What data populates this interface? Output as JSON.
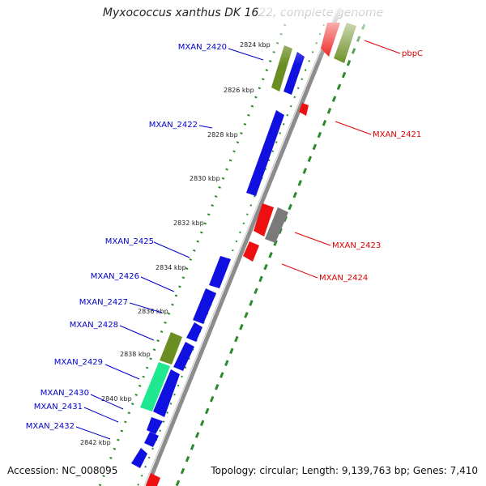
{
  "title": "Myxococcus xanthus DK 1622, complete genome",
  "footer": {
    "accession": "Accession: NC_008095",
    "summary": "Topology: circular; Length: 9,139,763 bp; Genes: 7,410"
  },
  "colors": {
    "forward_cds": "#1010e0",
    "reverse_cds": "#ee1010",
    "rna": "#7a7a7a",
    "olive": "#6b8e23",
    "teal": "#20e890",
    "forward_label": "#0000cc",
    "reverse_label": "#dd0000",
    "dots": "#2a8a2a",
    "backbone": "#8c8c8c"
  },
  "tick_labels": [
    "2824 kbp",
    "2826 kbp",
    "2828 kbp",
    "2830 kbp",
    "2832 kbp",
    "2834 kbp",
    "2836 kbp",
    "2838 kbp",
    "2840 kbp",
    "2842 kbp"
  ],
  "left_labels": [
    "MXAN_2420",
    "MXAN_2422",
    "MXAN_2425",
    "MXAN_2426",
    "MXAN_2427",
    "MXAN_2428",
    "MXAN_2429",
    "MXAN_2430",
    "MXAN_2431",
    "MXAN_2432"
  ],
  "right_labels": [
    "pbpC",
    "MXAN_2421",
    "MXAN_2423",
    "MXAN_2424"
  ]
}
